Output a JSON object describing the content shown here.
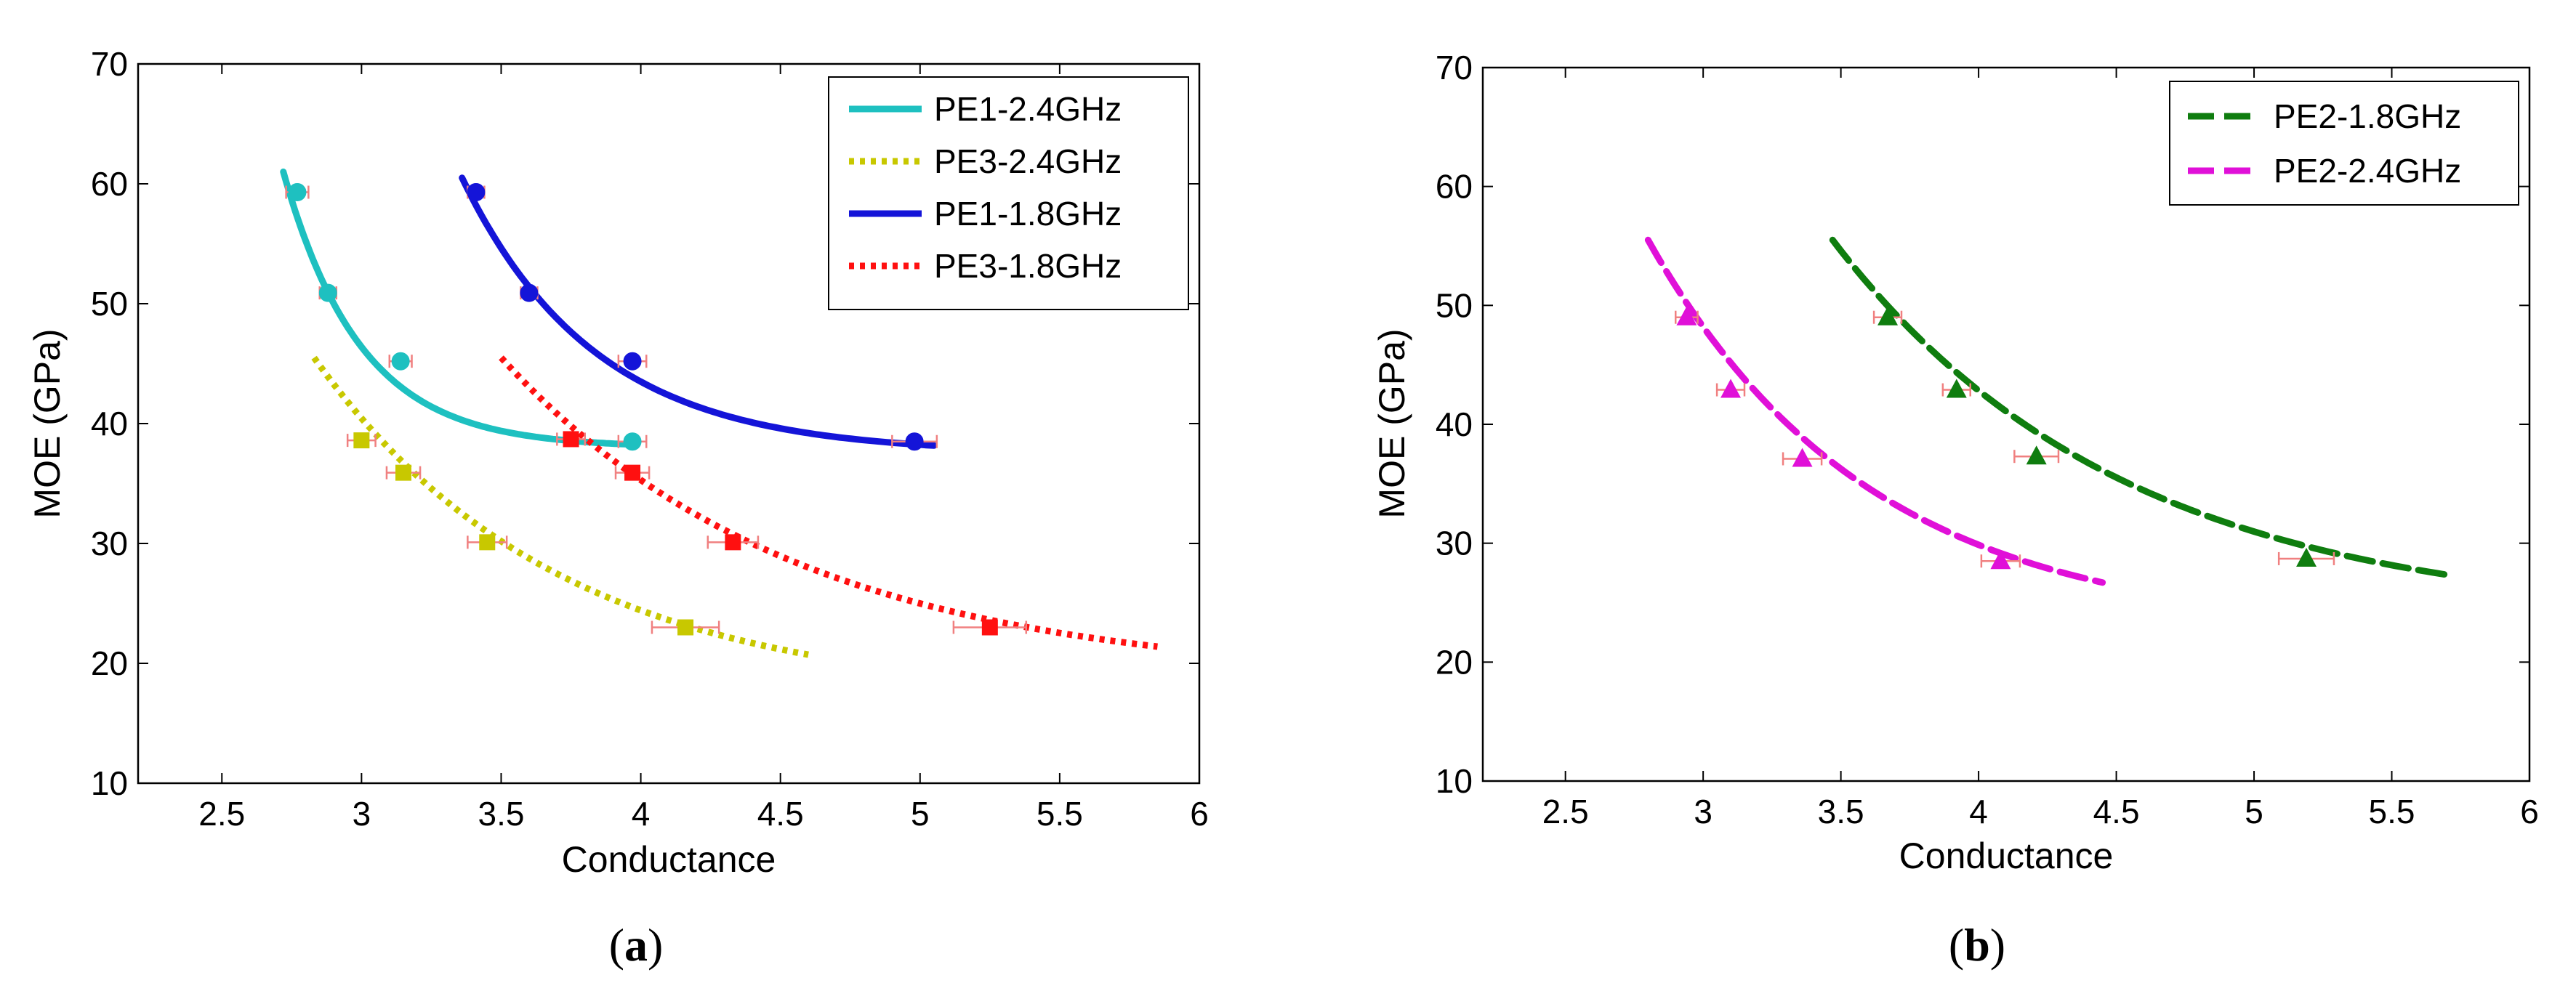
{
  "chart_data": [
    {
      "type": "line",
      "panel_label": "a",
      "xlabel": "Conductance",
      "ylabel": "MOE (GPa)",
      "xlim": [
        2.2,
        6.0
      ],
      "ylim": [
        10,
        70
      ],
      "xticks": [
        "2.5",
        "3",
        "3.5",
        "4",
        "4.5",
        "5",
        "5.5",
        "6"
      ],
      "yticks": [
        "10",
        "20",
        "30",
        "40",
        "50",
        "60",
        "70"
      ],
      "grid": false,
      "legend_position": "top-right",
      "series": [
        {
          "name": "PE1-2.4GHz",
          "color": "#1ec0c0",
          "style": "solid",
          "marker": "circle",
          "fit": {
            "a": 38.0,
            "b": 23.0,
            "k": 3.6,
            "x0": 2.72,
            "xmin": 2.72,
            "xmax": 3.98
          },
          "points": [
            {
              "x": 2.77,
              "y": 59.3,
              "xerr": 0.04
            },
            {
              "x": 2.88,
              "y": 50.9,
              "xerr": 0.03
            },
            {
              "x": 3.14,
              "y": 45.2,
              "xerr": 0.04
            },
            {
              "x": 3.97,
              "y": 38.5,
              "xerr": 0.05
            }
          ]
        },
        {
          "name": "PE3-2.4GHz",
          "color": "#c8c800",
          "style": "dotted",
          "marker": "square",
          "fit": {
            "a": 17.0,
            "b": 28.5,
            "k": 1.15,
            "x0": 2.83,
            "xmin": 2.83,
            "xmax": 4.6
          },
          "points": [
            {
              "x": 3.0,
              "y": 38.6,
              "xerr": 0.05
            },
            {
              "x": 3.15,
              "y": 35.9,
              "xerr": 0.06
            },
            {
              "x": 3.45,
              "y": 30.1,
              "xerr": 0.07
            },
            {
              "x": 4.16,
              "y": 23.0,
              "xerr": 0.12
            }
          ]
        },
        {
          "name": "PE1-1.8GHz",
          "color": "#1414d8",
          "style": "solid",
          "marker": "circle",
          "fit": {
            "a": 37.5,
            "b": 23.0,
            "k": 2.1,
            "x0": 3.36,
            "xmin": 3.36,
            "xmax": 5.05
          },
          "points": [
            {
              "x": 3.41,
              "y": 59.3,
              "xerr": 0.03
            },
            {
              "x": 3.6,
              "y": 50.9,
              "xerr": 0.03
            },
            {
              "x": 3.97,
              "y": 45.2,
              "xerr": 0.05
            },
            {
              "x": 4.98,
              "y": 38.5,
              "xerr": 0.08
            }
          ]
        },
        {
          "name": "PE3-1.8GHz",
          "color": "#ff1010",
          "style": "dotted",
          "marker": "square",
          "fit": {
            "a": 18.5,
            "b": 27.0,
            "k": 0.95,
            "x0": 3.5,
            "xmin": 3.5,
            "xmax": 5.85
          },
          "points": [
            {
              "x": 3.75,
              "y": 38.7,
              "xerr": 0.05
            },
            {
              "x": 3.97,
              "y": 35.9,
              "xerr": 0.06
            },
            {
              "x": 4.33,
              "y": 30.1,
              "xerr": 0.09
            },
            {
              "x": 5.25,
              "y": 23.0,
              "xerr": 0.13
            }
          ]
        }
      ]
    },
    {
      "type": "line",
      "panel_label": "b",
      "xlabel": "Conductance",
      "ylabel": "MOE (GPa)",
      "xlim": [
        2.2,
        6.0
      ],
      "ylim": [
        10,
        70
      ],
      "xticks": [
        "2.5",
        "3",
        "3.5",
        "4",
        "4.5",
        "5",
        "5.5",
        "6"
      ],
      "yticks": [
        "10",
        "20",
        "30",
        "40",
        "50",
        "60",
        "70"
      ],
      "grid": false,
      "legend_position": "top-right",
      "series": [
        {
          "name": "PE2-1.8GHz",
          "color": "#0f7d0f",
          "style": "dashed",
          "marker": "triangle",
          "fit": {
            "a": 23.5,
            "b": 32.0,
            "k": 0.95,
            "x0": 3.47,
            "xmin": 3.47,
            "xmax": 5.7
          },
          "points": [
            {
              "x": 3.67,
              "y": 49.0,
              "xerr": 0.05
            },
            {
              "x": 3.92,
              "y": 42.9,
              "xerr": 0.05
            },
            {
              "x": 4.21,
              "y": 37.3,
              "xerr": 0.08
            },
            {
              "x": 5.19,
              "y": 28.7,
              "xerr": 0.1
            }
          ]
        },
        {
          "name": "PE2-2.4GHz",
          "color": "#e010d8",
          "style": "dashed",
          "marker": "triangle",
          "fit": {
            "a": 22.5,
            "b": 33.0,
            "k": 1.25,
            "x0": 2.8,
            "xmin": 2.8,
            "xmax": 4.45
          },
          "points": [
            {
              "x": 2.94,
              "y": 49.0,
              "xerr": 0.04
            },
            {
              "x": 3.1,
              "y": 42.9,
              "xerr": 0.05
            },
            {
              "x": 3.36,
              "y": 37.1,
              "xerr": 0.07
            },
            {
              "x": 4.08,
              "y": 28.5,
              "xerr": 0.07
            }
          ]
        }
      ]
    }
  ]
}
